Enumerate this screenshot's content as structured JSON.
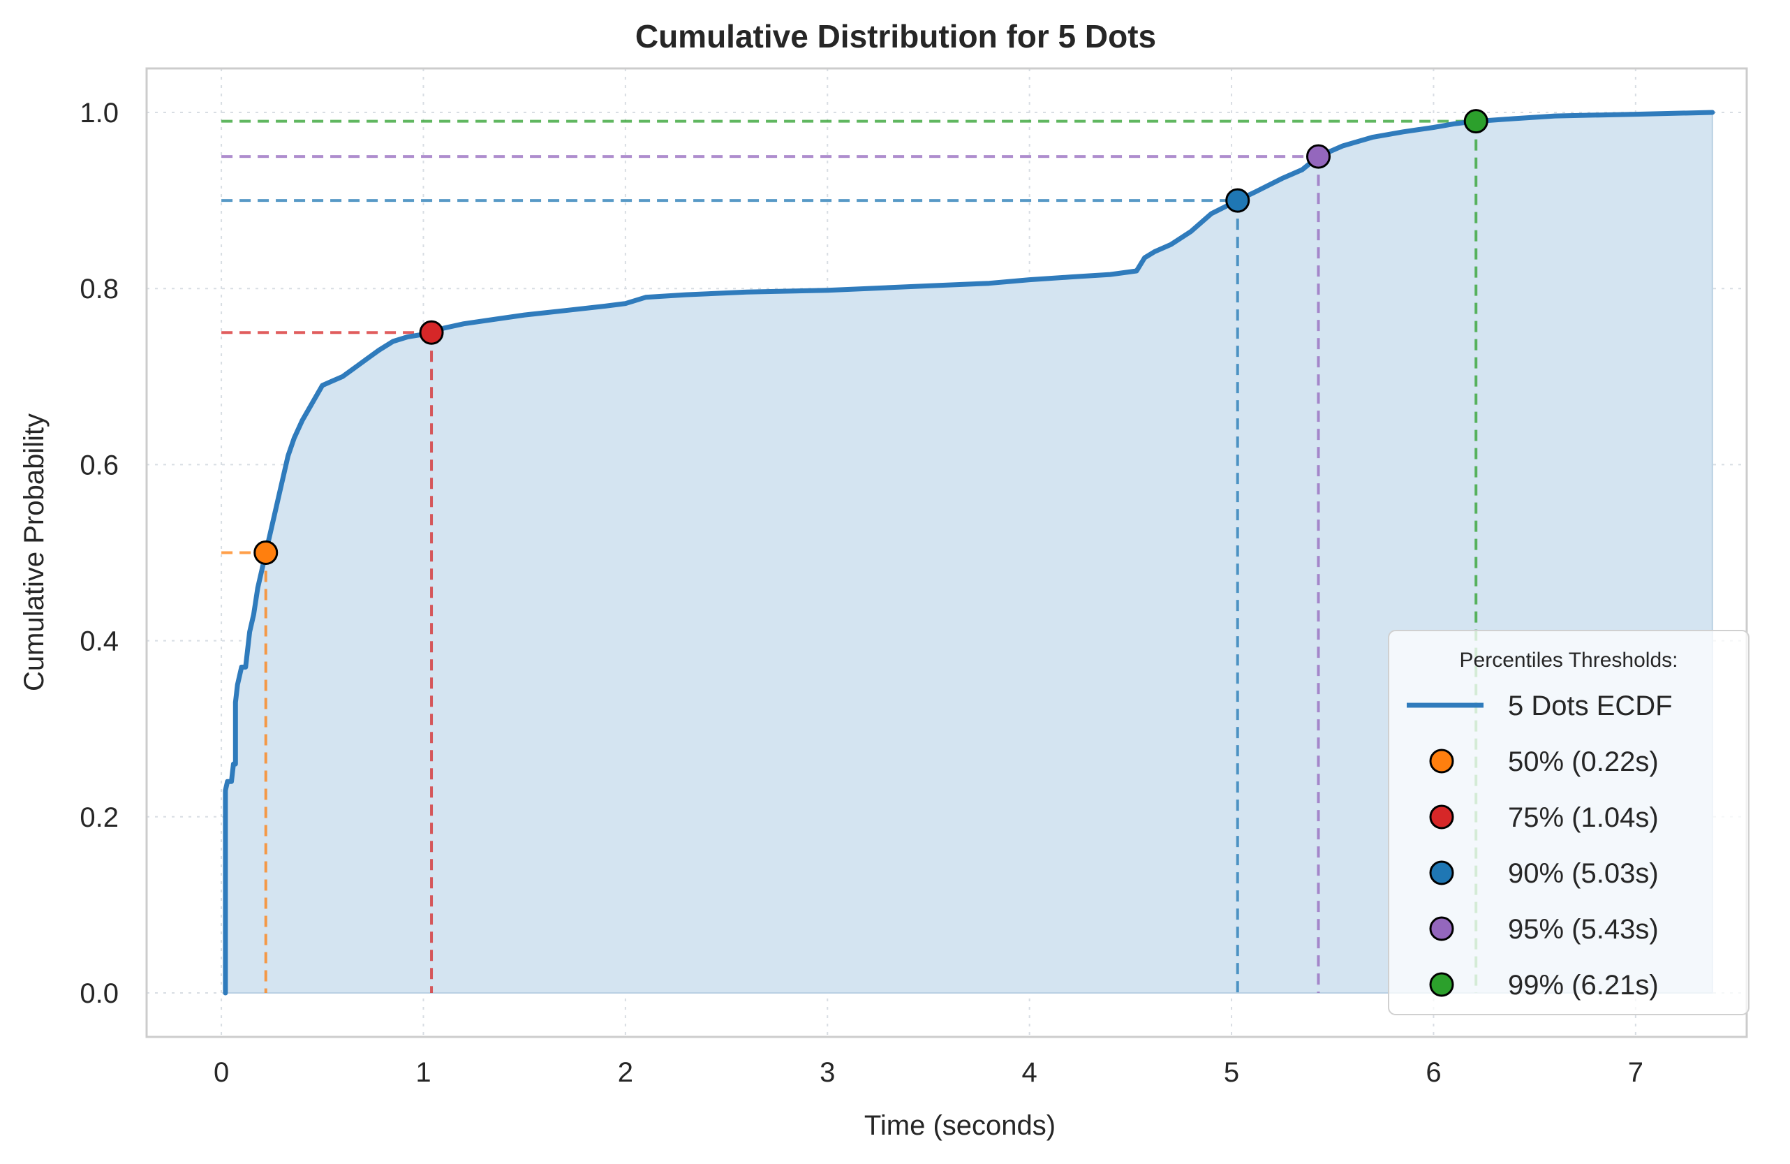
{
  "chart_data": {
    "type": "line",
    "title": "Cumulative Distribution for 5 Dots",
    "xlabel": "Time (seconds)",
    "ylabel": "Cumulative Probability",
    "xlim": [
      -0.37,
      7.55
    ],
    "ylim": [
      -0.05,
      1.05
    ],
    "x_ticks": [
      0,
      1,
      2,
      3,
      4,
      5,
      6,
      7
    ],
    "x_tick_labels": [
      "0",
      "1",
      "2",
      "3",
      "4",
      "5",
      "6",
      "7"
    ],
    "y_ticks": [
      0.0,
      0.2,
      0.4,
      0.6,
      0.8,
      1.0
    ],
    "y_tick_labels": [
      "0.0",
      "0.2",
      "0.4",
      "0.6",
      "0.8",
      "1.0"
    ],
    "grid": true,
    "series": [
      {
        "name": "5 Dots ECDF",
        "color": "#2f7bbc",
        "fill_color": "#d4e4f1",
        "x": [
          0.02,
          0.02,
          0.03,
          0.05,
          0.06,
          0.07,
          0.07,
          0.08,
          0.09,
          0.1,
          0.12,
          0.14,
          0.16,
          0.18,
          0.2,
          0.22,
          0.25,
          0.28,
          0.3,
          0.33,
          0.36,
          0.4,
          0.45,
          0.5,
          0.55,
          0.6,
          0.66,
          0.72,
          0.78,
          0.85,
          0.92,
          1.0,
          1.04,
          1.1,
          1.2,
          1.35,
          1.5,
          1.7,
          1.9,
          2.0,
          2.1,
          2.3,
          2.6,
          3.0,
          3.2,
          3.5,
          3.8,
          4.0,
          4.2,
          4.4,
          4.53,
          4.57,
          4.62,
          4.7,
          4.8,
          4.9,
          5.03,
          5.12,
          5.25,
          5.35,
          5.43,
          5.55,
          5.7,
          5.85,
          6.0,
          6.1,
          6.21,
          6.4,
          6.6,
          7.0,
          7.38
        ],
        "y": [
          0.0,
          0.23,
          0.24,
          0.24,
          0.26,
          0.26,
          0.33,
          0.35,
          0.36,
          0.37,
          0.37,
          0.41,
          0.43,
          0.46,
          0.48,
          0.5,
          0.53,
          0.56,
          0.58,
          0.61,
          0.63,
          0.65,
          0.67,
          0.69,
          0.695,
          0.7,
          0.71,
          0.72,
          0.73,
          0.74,
          0.745,
          0.748,
          0.75,
          0.755,
          0.76,
          0.765,
          0.77,
          0.775,
          0.78,
          0.783,
          0.79,
          0.793,
          0.796,
          0.798,
          0.8,
          0.803,
          0.806,
          0.81,
          0.813,
          0.816,
          0.82,
          0.835,
          0.842,
          0.85,
          0.865,
          0.885,
          0.9,
          0.91,
          0.925,
          0.935,
          0.95,
          0.962,
          0.972,
          0.978,
          0.983,
          0.987,
          0.99,
          0.993,
          0.996,
          0.998,
          1.0
        ]
      }
    ],
    "percentiles": [
      {
        "label": "50% (0.22s)",
        "x": 0.22,
        "y": 0.5,
        "color": "#ff7f0e"
      },
      {
        "label": "75% (1.04s)",
        "x": 1.04,
        "y": 0.75,
        "color": "#d62728"
      },
      {
        "label": "90% (5.03s)",
        "x": 5.03,
        "y": 0.9,
        "color": "#1f77b4"
      },
      {
        "label": "95% (5.43s)",
        "x": 5.43,
        "y": 0.95,
        "color": "#9467bd"
      },
      {
        "label": "99% (6.21s)",
        "x": 6.21,
        "y": 0.99,
        "color": "#2ca02c"
      }
    ],
    "legend": {
      "title": "Percentiles Thresholds:",
      "placement": "lower-right"
    }
  }
}
